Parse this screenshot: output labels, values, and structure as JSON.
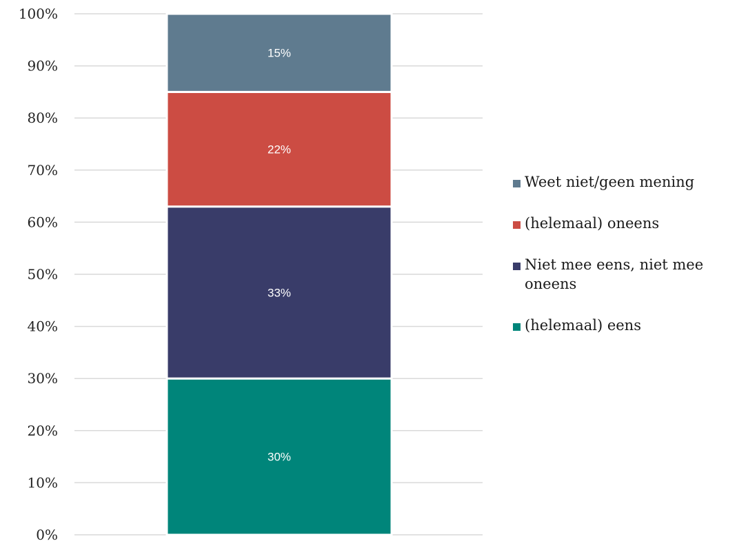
{
  "chart_data": {
    "type": "bar",
    "stacked": true,
    "categories": [
      ""
    ],
    "series": [
      {
        "name": "(helemaal) eens",
        "values": [
          30
        ],
        "color": "#00857a",
        "label": "30%"
      },
      {
        "name": "Niet mee eens, niet mee oneens",
        "values": [
          33
        ],
        "color": "#393c69",
        "label": "33%"
      },
      {
        "name": "(helemaal) oneens",
        "values": [
          22
        ],
        "color": "#cc4c43",
        "label": "22%"
      },
      {
        "name": "Weet niet/geen mening",
        "values": [
          15
        ],
        "color": "#5f7b8f",
        "label": "15%"
      }
    ],
    "yticks": [
      "0%",
      "10%",
      "20%",
      "30%",
      "40%",
      "50%",
      "60%",
      "70%",
      "80%",
      "90%",
      "100%"
    ],
    "ylim": [
      0,
      100
    ],
    "grid": true,
    "legend_position": "right",
    "legend_order": [
      "Weet niet/geen mening",
      "(helemaal) oneens",
      "Niet mee eens, niet mee oneens",
      "(helemaal) eens"
    ]
  }
}
